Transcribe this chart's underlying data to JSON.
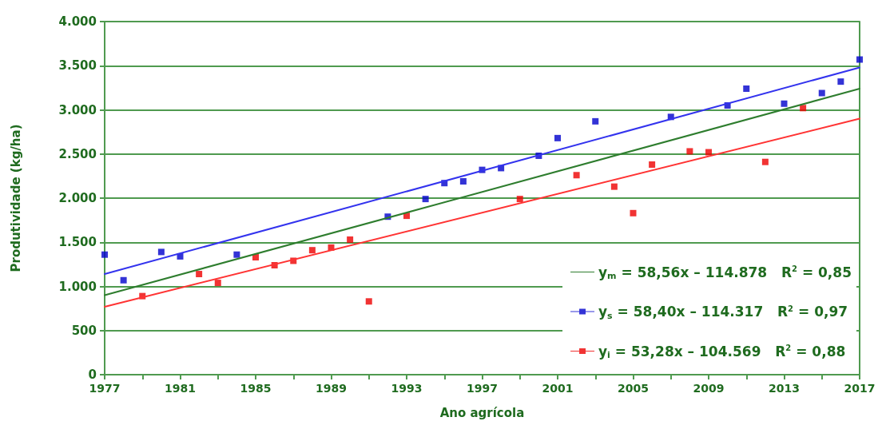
{
  "chart_data": {
    "type": "scatter",
    "xlabel": "Ano agrícola",
    "ylabel": "Produtividade (kg/ha)",
    "xlim": [
      1977,
      2017
    ],
    "xticks": [
      1977,
      {
        "value": 1979,
        "label": null
      },
      1981,
      {
        "value": 1983,
        "label": null
      },
      1985,
      {
        "value": 1987,
        "label": null
      },
      1989,
      {
        "value": 1991,
        "label": null
      },
      1993,
      {
        "value": 1995,
        "label": null
      },
      1997,
      {
        "value": 1999,
        "label": null
      },
      2001,
      {
        "value": 2003,
        "label": null
      },
      2005,
      {
        "value": 2007,
        "label": null
      },
      2009,
      {
        "value": 2011,
        "label": null
      },
      2013,
      {
        "value": 2015,
        "label": null
      },
      2017
    ],
    "ylim": [
      0,
      4000
    ],
    "yticks": [
      0,
      500,
      {
        "value": 1000,
        "label": "1.000"
      },
      {
        "value": 1500,
        "label": "1.500"
      },
      {
        "value": 2000,
        "label": "2.000"
      },
      {
        "value": 2500,
        "label": "2.500"
      },
      {
        "value": 3000,
        "label": "3.000"
      },
      {
        "value": 3500,
        "label": "3.500"
      },
      {
        "value": 4000,
        "label": "4.000"
      }
    ],
    "grid": "y",
    "legend": "bottom right",
    "series": [
      {
        "type": "line",
        "marker": "none",
        "name": "y$_{m}$ = 58,56x – 114.878   R$^{2}$ = 0,85",
        "color": "#2e7d2e",
        "x": [
          1977,
          2017
        ],
        "values": [
          900,
          3240
        ]
      },
      {
        "marker": "square",
        "name": "y$_{s}$ = 58,40x – 114.317   R$^{2}$ = 0,97",
        "color": "#0000cc",
        "x": [
          1977,
          1978,
          1980,
          1981,
          1984,
          1992,
          1994,
          1995,
          1996,
          1997,
          1998,
          2000,
          2001,
          2003,
          2007,
          2010,
          2011,
          2013,
          2015,
          2016,
          2017
        ],
        "values": [
          1360,
          1070,
          1390,
          1340,
          1360,
          1790,
          1990,
          2170,
          2190,
          2320,
          2340,
          2480,
          2680,
          2870,
          2920,
          3050,
          3240,
          3070,
          3190,
          3320,
          3570
        ]
      },
      {
        "type": "line",
        "marker": "none",
        "color": "#3333ee",
        "x": [
          1977,
          2017
        ],
        "values": [
          1140,
          3480
        ]
      },
      {
        "marker": "square",
        "name": "y$_{i}$ = 53,28x – 104.569   R$^{2}$ = 0,88",
        "color": "#ee0000",
        "x": [
          1979,
          1982,
          1983,
          1985,
          1986,
          1987,
          1988,
          1989,
          1990,
          1991,
          1993,
          1999,
          2002,
          2004,
          2005,
          2006,
          2008,
          2009,
          2012,
          2014
        ],
        "values": [
          890,
          1140,
          1040,
          1330,
          1240,
          1290,
          1410,
          1440,
          1530,
          830,
          1800,
          1990,
          2260,
          2130,
          1830,
          2380,
          2530,
          2520,
          2410,
          3020
        ]
      },
      {
        "type": "line",
        "marker": "none",
        "color": "#ff3333",
        "x": [
          1977,
          2017
        ],
        "values": [
          770,
          2900
        ]
      }
    ]
  }
}
